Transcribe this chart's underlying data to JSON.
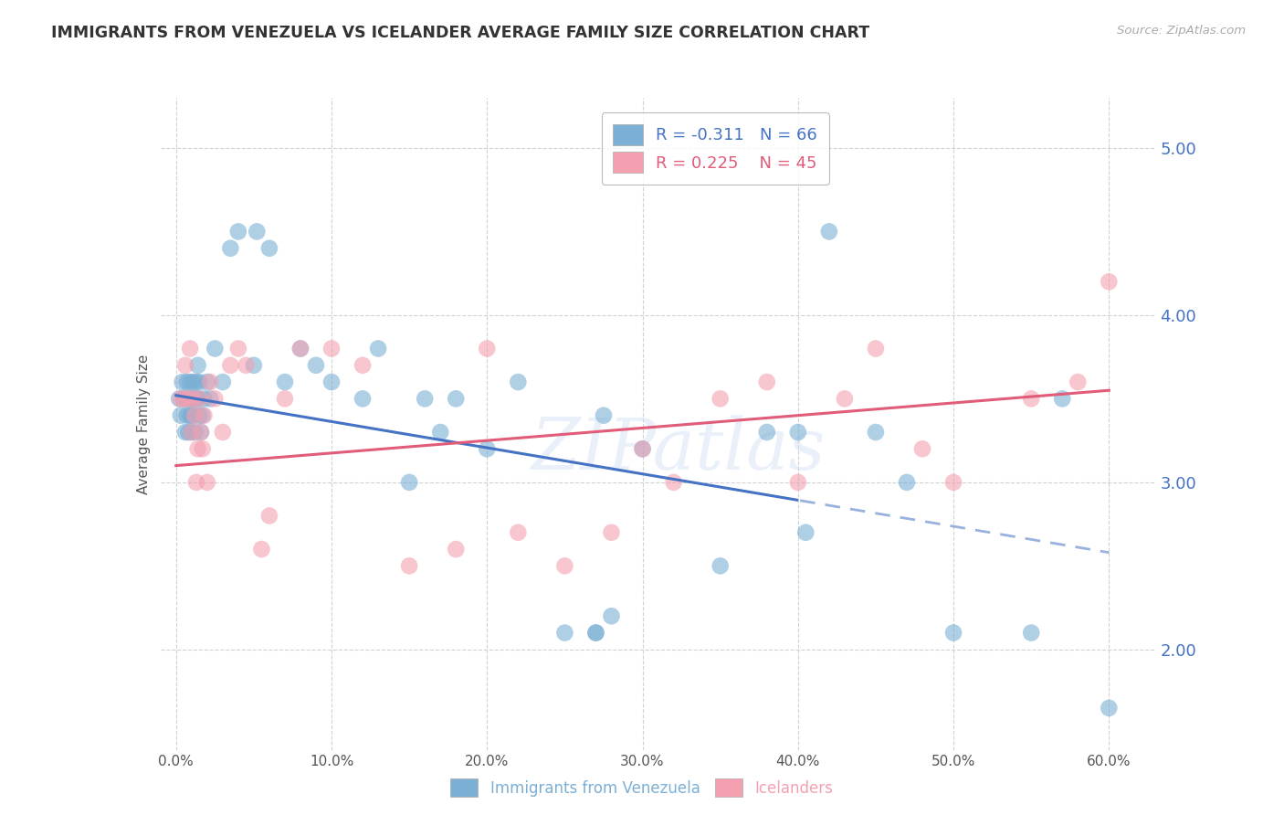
{
  "title": "IMMIGRANTS FROM VENEZUELA VS ICELANDER AVERAGE FAMILY SIZE CORRELATION CHART",
  "source": "Source: ZipAtlas.com",
  "ylabel": "Average Family Size",
  "xlabel_ticks": [
    "0.0%",
    "10.0%",
    "20.0%",
    "30.0%",
    "40.0%",
    "50.0%",
    "60.0%"
  ],
  "xlabel_vals": [
    0.0,
    10.0,
    20.0,
    30.0,
    40.0,
    50.0,
    60.0
  ],
  "yright_ticks": [
    2.0,
    3.0,
    4.0,
    5.0
  ],
  "ylim": [
    1.4,
    5.3
  ],
  "xlim": [
    -1.0,
    63.0
  ],
  "blue_color": "#7bafd4",
  "pink_color": "#f4a0b0",
  "trend_blue": "#4472c4",
  "trend_pink": "#e05c78",
  "background": "#ffffff",
  "grid_color": "#cccccc",
  "right_axis_color": "#4472c4",
  "watermark": "ZIPatlas",
  "trend_blue_x0": 0.0,
  "trend_blue_y0": 3.52,
  "trend_blue_x1": 60.0,
  "trend_blue_y1": 2.58,
  "trend_pink_x0": 0.0,
  "trend_pink_y0": 3.1,
  "trend_pink_x1": 60.0,
  "trend_pink_y1": 3.55,
  "dash_start_x": 40.0,
  "venezuela_x": [
    0.2,
    0.3,
    0.4,
    0.5,
    0.6,
    0.6,
    0.7,
    0.7,
    0.8,
    0.8,
    0.9,
    0.9,
    1.0,
    1.0,
    1.0,
    1.1,
    1.1,
    1.2,
    1.2,
    1.3,
    1.3,
    1.4,
    1.4,
    1.5,
    1.5,
    1.6,
    1.7,
    1.8,
    2.0,
    2.2,
    2.5,
    3.0,
    3.5,
    4.0,
    5.0,
    5.2,
    6.0,
    7.0,
    8.0,
    9.0,
    10.0,
    12.0,
    13.0,
    15.0,
    16.0,
    17.0,
    18.0,
    20.0,
    22.0,
    25.0,
    27.0,
    30.0,
    35.0,
    38.0,
    40.0,
    42.0,
    45.0,
    47.0,
    50.0,
    55.0,
    57.0,
    60.0,
    27.0,
    27.5,
    28.0,
    40.5
  ],
  "venezuela_y": [
    3.5,
    3.4,
    3.6,
    3.5,
    3.5,
    3.3,
    3.4,
    3.6,
    3.5,
    3.3,
    3.4,
    3.6,
    3.5,
    3.3,
    3.4,
    3.5,
    3.6,
    3.4,
    3.3,
    3.5,
    3.6,
    3.5,
    3.7,
    3.4,
    3.6,
    3.3,
    3.4,
    3.5,
    3.6,
    3.5,
    3.8,
    3.6,
    4.4,
    4.5,
    3.7,
    4.5,
    4.4,
    3.6,
    3.8,
    3.7,
    3.6,
    3.5,
    3.8,
    3.0,
    3.5,
    3.3,
    3.5,
    3.2,
    3.6,
    2.1,
    2.1,
    3.2,
    2.5,
    3.3,
    3.3,
    4.5,
    3.3,
    3.0,
    2.1,
    2.1,
    3.5,
    1.65,
    2.1,
    3.4,
    2.2,
    2.7
  ],
  "icelander_x": [
    0.3,
    0.5,
    0.6,
    0.8,
    0.9,
    1.0,
    1.1,
    1.2,
    1.3,
    1.4,
    1.5,
    1.6,
    1.7,
    1.8,
    2.0,
    2.2,
    2.5,
    3.0,
    3.5,
    4.0,
    4.5,
    5.5,
    6.0,
    7.0,
    8.0,
    10.0,
    12.0,
    15.0,
    18.0,
    20.0,
    22.0,
    25.0,
    28.0,
    30.0,
    32.0,
    35.0,
    38.0,
    40.0,
    43.0,
    45.0,
    48.0,
    50.0,
    55.0,
    58.0,
    60.0
  ],
  "icelander_y": [
    3.5,
    3.5,
    3.7,
    3.5,
    3.8,
    3.3,
    3.5,
    3.4,
    3.0,
    3.2,
    3.5,
    3.3,
    3.2,
    3.4,
    3.0,
    3.6,
    3.5,
    3.3,
    3.7,
    3.8,
    3.7,
    2.6,
    2.8,
    3.5,
    3.8,
    3.8,
    3.7,
    2.5,
    2.6,
    3.8,
    2.7,
    2.5,
    2.7,
    3.2,
    3.0,
    3.5,
    3.6,
    3.0,
    3.5,
    3.8,
    3.2,
    3.0,
    3.5,
    3.6,
    4.2
  ]
}
